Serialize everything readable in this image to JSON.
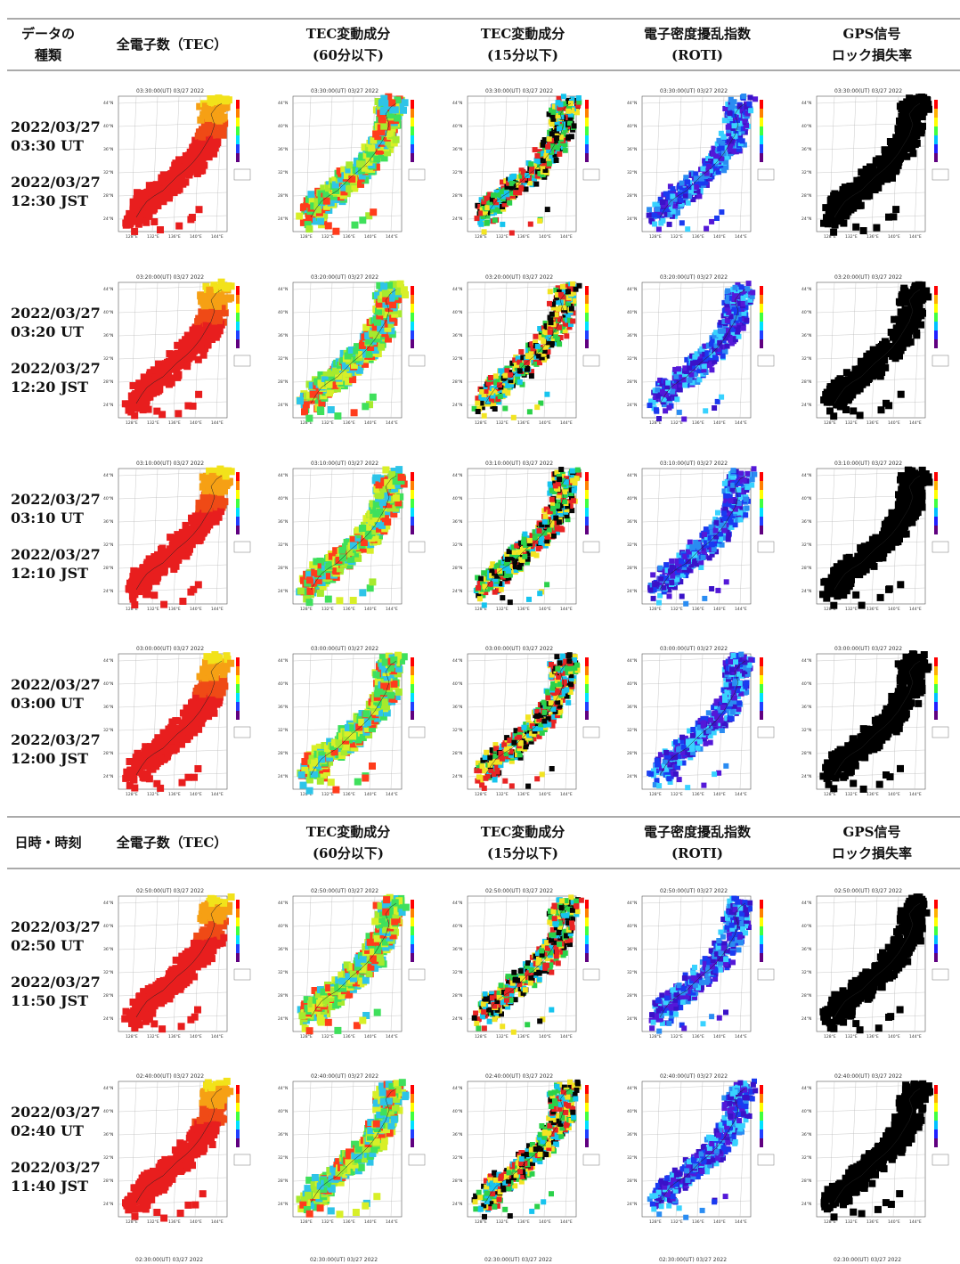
{
  "header1": {
    "c0": [
      "データの",
      "種類"
    ],
    "c1": [
      "全電子数（TEC）"
    ],
    "c2": [
      "TEC変動成分",
      "(60分以下)"
    ],
    "c3": [
      "TEC変動成分",
      "(15分以下)"
    ],
    "c4": [
      "電子密度擾乱指数",
      "(ROTI)"
    ],
    "c5": [
      "GPS信号",
      "ロック損失率"
    ]
  },
  "header2": {
    "c0": [
      "日時・時刻"
    ],
    "c1": [
      "全電子数（TEC）"
    ],
    "c2": [
      "TEC変動成分",
      "(60分以下)"
    ],
    "c3": [
      "TEC変動成分",
      "(15分以下)"
    ],
    "c4": [
      "電子密度擾乱指数",
      "(ROTI)"
    ],
    "c5": [
      "GPS信号",
      "ロック損失率"
    ]
  },
  "rows": [
    {
      "ut_date": "2022/03/27",
      "ut_time": "03:30 UT",
      "jst_date": "2022/03/27",
      "jst_time": "12:30 JST",
      "map_title": "03:30:00(UT) 03/27 2022"
    },
    {
      "ut_date": "2022/03/27",
      "ut_time": "03:20 UT",
      "jst_date": "2022/03/27",
      "jst_time": "12:20 JST",
      "map_title": "03:20:00(UT) 03/27 2022"
    },
    {
      "ut_date": "2022/03/27",
      "ut_time": "03:10 UT",
      "jst_date": "2022/03/27",
      "jst_time": "12:10 JST",
      "map_title": "03:10:00(UT) 03/27 2022"
    },
    {
      "ut_date": "2022/03/27",
      "ut_time": "03:00 UT",
      "jst_date": "2022/03/27",
      "jst_time": "12:00 JST",
      "map_title": "03:00:00(UT) 03/27 2022"
    },
    {
      "ut_date": "2022/03/27",
      "ut_time": "02:50 UT",
      "jst_date": "2022/03/27",
      "jst_time": "11:50 JST",
      "map_title": "02:50:00(UT) 03/27 2022"
    },
    {
      "ut_date": "2022/03/27",
      "ut_time": "02:40 UT",
      "jst_date": "2022/03/27",
      "jst_time": "11:40 JST",
      "map_title": "02:40:00(UT) 03/27 2022"
    }
  ],
  "partial_title": "02:30:00(UT) 03/27 2022",
  "lat_labels": [
    "44°N",
    "40°N",
    "36°N",
    "32°N",
    "28°N",
    "24°N"
  ],
  "lon_labels": [
    "128°E",
    "132°E",
    "136°E",
    "140°E",
    "144°E"
  ],
  "colors": {
    "tec": [
      "#e81e1e",
      "#ef4a16",
      "#f6a014",
      "#f2e21a"
    ],
    "dtec60": [
      "#3fe05c",
      "#a6ea2e",
      "#d8ef28",
      "#ff3c1c",
      "#2ec4e8"
    ],
    "dtec15": [
      "#050505",
      "#e82424",
      "#16c4ee",
      "#f2e422",
      "#2bd14a"
    ],
    "roti": [
      "#3a12c8",
      "#5418d8",
      "#1a3af0",
      "#2a8cf2",
      "#38d2ff"
    ],
    "lol": [
      "#000000"
    ]
  }
}
